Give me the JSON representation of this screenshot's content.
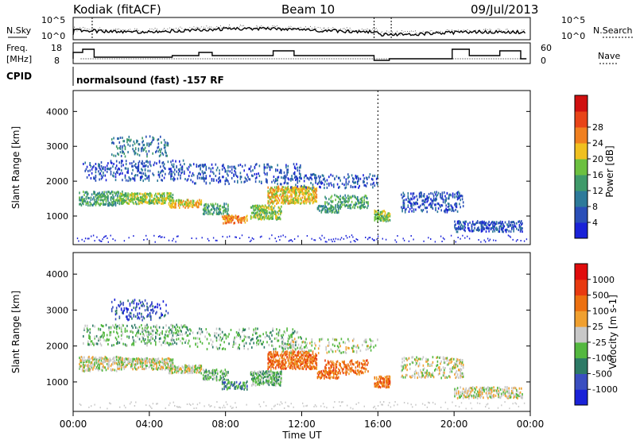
{
  "header": {
    "station": "Kodiak (fitACF)",
    "beam": "Beam 10",
    "date": "09/Jul/2013"
  },
  "status_panel": {
    "nsky_label": "N.Sky",
    "nsearch_label": "N.Search",
    "freq_label_1": "Freq.",
    "freq_label_2": "[MHz]",
    "nave_label": "Nave",
    "cpid_label": "CPID",
    "cpid_text": "normalsound (fast) -157 RF",
    "noise_ticks": [
      "10^5",
      "10^0"
    ],
    "noise_right_ticks": [
      "10^5",
      "10^0"
    ],
    "freq_ticks": [
      "18",
      "8"
    ],
    "nave_ticks": [
      "60",
      "0"
    ]
  },
  "chart_data": [
    {
      "type": "heatmap",
      "name": "power",
      "ylabel": "Slant Range [km]",
      "ylim": [
        180,
        4600
      ],
      "yticks": [
        1000,
        2000,
        3000,
        4000
      ],
      "xlim": [
        0,
        24
      ],
      "colorbar_label": "Power [dB]",
      "colorbar_ticks": [
        "4",
        "8",
        "12",
        "16",
        "20",
        "24",
        "28"
      ],
      "colorbar_colors": [
        "#1a22d8",
        "#2a4fb8",
        "#2d7a9a",
        "#3f9a6a",
        "#6cc040",
        "#f0c020",
        "#f08020",
        "#e84418",
        "#d01010"
      ]
    },
    {
      "type": "heatmap",
      "name": "velocity",
      "ylabel": "Slant Range [km]",
      "ylim": [
        180,
        4600
      ],
      "yticks": [
        1000,
        2000,
        3000,
        4000
      ],
      "xlim": [
        0,
        24
      ],
      "colorbar_label": "Velocity [m s-1]",
      "colorbar_ticks": [
        "1000",
        "500",
        "100",
        "25",
        "-25",
        "-100",
        "-500",
        "-1000"
      ],
      "colorbar_colors": [
        "#1a22d8",
        "#3a4ec0",
        "#2d7a66",
        "#54b840",
        "#c8c8c8",
        "#f0a030",
        "#ec7010",
        "#e83a10",
        "#e00c0c"
      ]
    }
  ],
  "xaxis": {
    "ticks": [
      "00:00",
      "04:00",
      "08:00",
      "12:00",
      "16:00",
      "20:00",
      "00:00"
    ],
    "label": "Time UT"
  }
}
